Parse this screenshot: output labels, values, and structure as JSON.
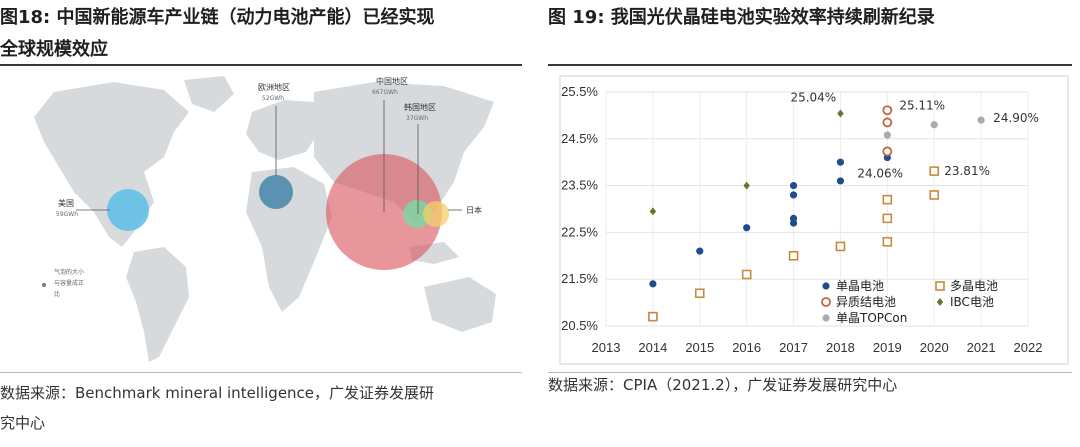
{
  "left": {
    "title_line1": "图18:  中国新能源车产业链（动力电池产能）已经实现",
    "title_line2": "全球规模效应",
    "source_line1": "数据来源：Benchmark mineral intelligence，广发证券发展研",
    "source_line2": "究中心",
    "chart_data": {
      "type": "bubble-map",
      "bubbles": [
        {
          "region": "欧洲地区",
          "value": "52GWh",
          "color": "#3d7fa6"
        },
        {
          "region": "中国地区",
          "value": "667GWh",
          "color": "#d9575f"
        },
        {
          "region": "韩国地区",
          "value": "37GWh",
          "color": "#7fd6a4"
        },
        {
          "region": "美国",
          "value": "59GWh",
          "color": "#5bbde8"
        },
        {
          "region": "日本",
          "value": "",
          "color": "#f3cf6a"
        }
      ],
      "legend_note": [
        "气泡的大小",
        "与容量成正",
        "比"
      ]
    }
  },
  "right": {
    "title": "图 19:  我国光伏晶硅电池实验效率持续刷新纪录",
    "source": "数据来源：CPIA（2021.2），广发证券发展研究中心",
    "chart_data": {
      "type": "scatter",
      "xlim": [
        2013,
        2022
      ],
      "ylim": [
        20.5,
        25.5
      ],
      "x_ticks": [
        "2013",
        "2014",
        "2015",
        "2016",
        "2017",
        "2018",
        "2019",
        "2020",
        "2021",
        "2022"
      ],
      "y_ticks": [
        "20.5%",
        "21.5%",
        "22.5%",
        "23.5%",
        "24.5%",
        "25.5%"
      ],
      "grid": true,
      "legend_position": "bottom-right",
      "series": [
        {
          "name": "单晶电池",
          "marker": "dot",
          "color": "#1f4e8c",
          "points": [
            [
              2014,
              21.4
            ],
            [
              2015,
              22.1
            ],
            [
              2016,
              22.6
            ],
            [
              2017,
              22.7
            ],
            [
              2017,
              22.8
            ],
            [
              2017,
              23.3
            ],
            [
              2017,
              23.5
            ],
            [
              2018,
              23.6
            ],
            [
              2018,
              24.0
            ],
            [
              2019,
              24.1
            ]
          ]
        },
        {
          "name": "多晶电池",
          "marker": "square",
          "color": "#c88a3a",
          "points": [
            [
              2014,
              20.7
            ],
            [
              2015,
              21.2
            ],
            [
              2016,
              21.6
            ],
            [
              2017,
              22.0
            ],
            [
              2018,
              22.2
            ],
            [
              2019,
              22.3
            ],
            [
              2019,
              22.8
            ],
            [
              2019,
              23.2
            ],
            [
              2020,
              23.3
            ],
            [
              2020,
              23.81
            ]
          ]
        },
        {
          "name": "异质结电池",
          "marker": "ring",
          "color": "#c0663f",
          "points": [
            [
              2019,
              24.23
            ],
            [
              2019,
              24.85
            ],
            [
              2019,
              25.11
            ]
          ]
        },
        {
          "name": "IBC电池",
          "marker": "diamond",
          "color": "#5b7a2e",
          "points": [
            [
              2014,
              22.95
            ],
            [
              2016,
              23.5
            ],
            [
              2018,
              25.04
            ]
          ]
        },
        {
          "name": "单晶TOPCon",
          "marker": "dot",
          "color": "#aaaaaa",
          "points": [
            [
              2019,
              24.58
            ],
            [
              2020,
              24.8
            ],
            [
              2021,
              24.9
            ]
          ]
        }
      ],
      "annotations": [
        {
          "text": "25.11%",
          "x": 2019,
          "y": 25.11
        },
        {
          "text": "25.04%",
          "x": 2018,
          "y": 25.04
        },
        {
          "text": "24.06%",
          "x": 2019,
          "y": 24.06
        },
        {
          "text": "23.81%",
          "x": 2020,
          "y": 23.81
        },
        {
          "text": "24.90%",
          "x": 2021,
          "y": 24.9
        }
      ]
    }
  }
}
